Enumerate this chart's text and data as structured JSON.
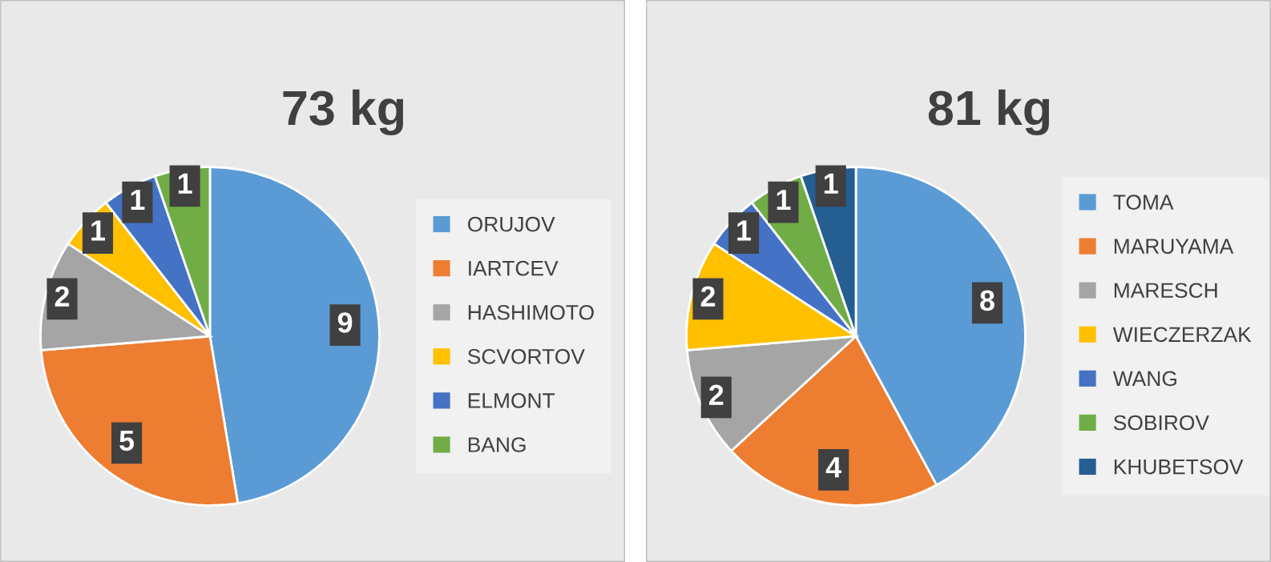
{
  "chart_data": [
    {
      "type": "pie",
      "title": "73 kg",
      "categories": [
        "ORUJOV",
        "IARTCEV",
        "HASHIMOTO",
        "SCVORTOV",
        "ELMONT",
        "BANG"
      ],
      "values": [
        9,
        5,
        2,
        1,
        1,
        1
      ],
      "colors": [
        "#5b9bd5",
        "#ed7d31",
        "#a5a5a5",
        "#ffc000",
        "#4472c4",
        "#70ad47"
      ],
      "data_labels": true,
      "legend": "right"
    },
    {
      "type": "pie",
      "title": "81 kg",
      "categories": [
        "TOMA",
        "MARUYAMA",
        "MARESCH",
        "WIECZERZAK",
        "WANG",
        "SOBIROV",
        "KHUBETSOV"
      ],
      "values": [
        8,
        4,
        2,
        2,
        1,
        1,
        1
      ],
      "colors": [
        "#5b9bd5",
        "#ed7d31",
        "#a5a5a5",
        "#ffc000",
        "#4472c4",
        "#70ad47",
        "#255e91"
      ],
      "data_labels": true,
      "legend": "right"
    }
  ]
}
